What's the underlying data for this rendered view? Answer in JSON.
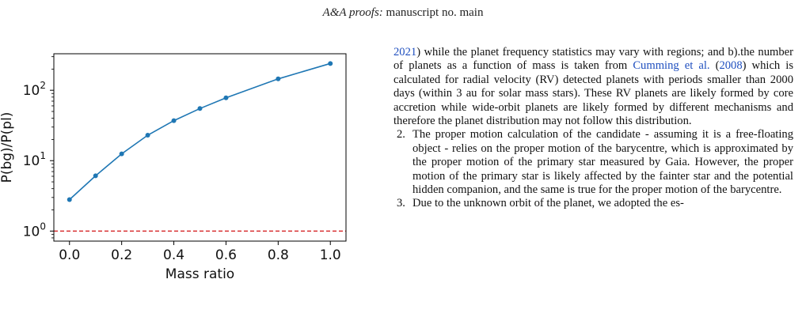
{
  "header": {
    "journal": "A&A proofs:",
    "rest": "manuscript no. main"
  },
  "chart_data": {
    "type": "line",
    "xlabel": "Mass ratio",
    "ylabel": "P(bg)/P(pl)",
    "yscale": "log",
    "xlim": [
      -0.06,
      1.06
    ],
    "ylim": [
      0.72,
      330
    ],
    "xticks": [
      "0.0",
      "0.2",
      "0.4",
      "0.6",
      "0.8",
      "1.0"
    ],
    "yticks": [
      {
        "base": "10",
        "exp": "0"
      },
      {
        "base": "10",
        "exp": "1"
      },
      {
        "base": "10",
        "exp": "2"
      }
    ],
    "series": [
      {
        "color": "#1f77b4",
        "x": [
          0.0,
          0.1,
          0.2,
          0.3,
          0.4,
          0.5,
          0.6,
          0.8,
          1.0
        ],
        "y": [
          2.8,
          6.1,
          12.5,
          23,
          37,
          55,
          78,
          145,
          240
        ]
      }
    ],
    "reference_line": {
      "y": 1.0,
      "color": "#d62728",
      "style": "dashed"
    },
    "grid": false
  },
  "text": {
    "para_intro": [
      {
        "t": "2021",
        "cite": true
      },
      {
        "t": ") while the planet frequency statistics may vary with regions; and b).the number of planets as a function of mass is taken from "
      },
      {
        "t": "Cumming et al.",
        "cite": true
      },
      {
        "t": " ("
      },
      {
        "t": "2008",
        "cite": true
      },
      {
        "t": ") which is calculated for radial velocity (RV) detected planets with periods smaller than 2000 days (within 3 au for solar mass stars). These RV planets are likely formed by core accretion while wide-orbit planets are likely formed by different mechanisms and therefore the planet distribution may not follow this distribution."
      }
    ],
    "items": [
      {
        "num": "2.",
        "text": "The proper motion calculation of the candidate - assuming it is a free-floating object - relies on the proper motion of the barycentre, which is approximated by the proper motion of the primary star measured by Gaia. However, the proper motion of the primary star is likely affected by the fainter star and the potential hidden companion, and the same is true for the proper motion of the barycentre."
      },
      {
        "num": "3.",
        "text": "Due to the unknown orbit of the planet, we adopted the es-"
      }
    ]
  }
}
